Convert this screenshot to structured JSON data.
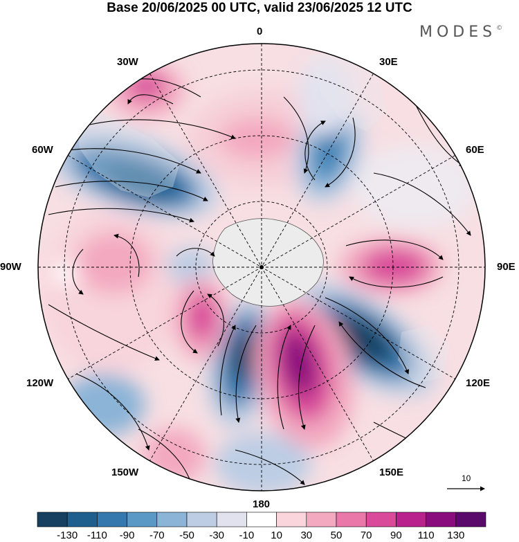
{
  "title": "Base 20/06/2025 00 UTC, valid 23/06/2025 12 UTC",
  "brand": {
    "name": "MODES",
    "mark": "©"
  },
  "longitude_labels": {
    "lon_0": "0",
    "lon_30e": "30E",
    "lon_60e": "60E",
    "lon_90e": "90E",
    "lon_120e": "120E",
    "lon_150e": "150E",
    "lon_180": "180",
    "lon_150w": "150W",
    "lon_120w": "120W",
    "lon_90w": "90W",
    "lon_60w": "60W",
    "lon_30w": "30W"
  },
  "reference_vector": {
    "label": "10"
  },
  "colorbar": {
    "tick_labels": [
      "-130",
      "-110",
      "-90",
      "-70",
      "-50",
      "-30",
      "-10",
      "10",
      "30",
      "50",
      "70",
      "90",
      "110",
      "130"
    ],
    "colors": [
      "#173f60",
      "#1f5f8e",
      "#3578ad",
      "#5a98c6",
      "#8bb4d7",
      "#bccde4",
      "#e2e2ef",
      "#ffffff",
      "#fad6dc",
      "#f3a9c0",
      "#ea79a9",
      "#d94a9a",
      "#b9218d",
      "#8a0d7d",
      "#5a0a6b"
    ]
  },
  "colors": {
    "land": "#ececec",
    "grid": "#000000",
    "border": "#000000"
  }
}
